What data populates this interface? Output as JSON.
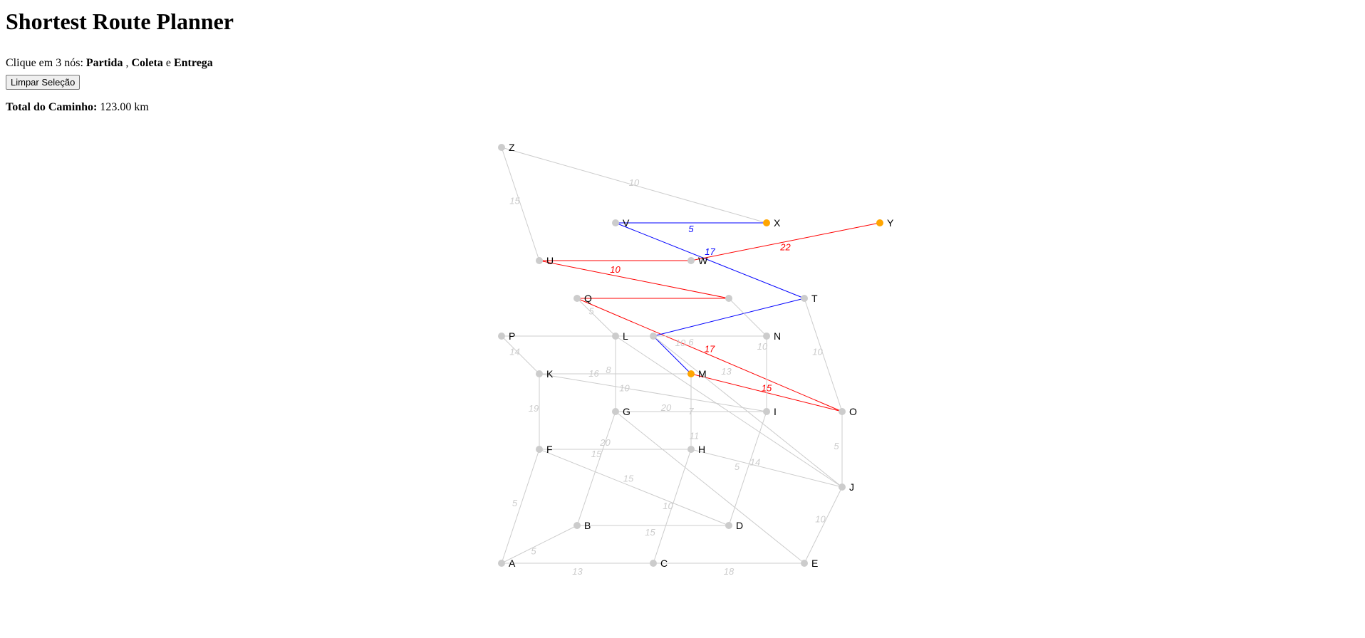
{
  "header": {
    "title": "Shortest Route Planner",
    "instruction_prefix": "Clique em 3 nós:",
    "step1": "Partida",
    "sep1": ",",
    "step2": "Coleta",
    "sep2": "e",
    "step3": "Entrega"
  },
  "controls": {
    "clear_label": "Limpar Seleção"
  },
  "summary": {
    "total_label": "Total do Caminho:",
    "total_value": "123.00 km"
  },
  "colors": {
    "node": "#cccccc",
    "selected": "#ffa500",
    "edge": "#cccccc",
    "leg1": "#0000ff",
    "leg2": "#ff0000",
    "label_default": "#cccccc"
  },
  "graph": {
    "nodes": [
      {
        "id": "Z",
        "label": "Z",
        "selected": false
      },
      {
        "id": "X",
        "label": "X",
        "selected": true
      },
      {
        "id": "Y",
        "label": "Y",
        "selected": true
      },
      {
        "id": "V",
        "label": "V",
        "selected": false
      },
      {
        "id": "U",
        "label": "U",
        "selected": false
      },
      {
        "id": "W",
        "label": "W",
        "selected": false
      },
      {
        "id": "T",
        "label": "T",
        "selected": false
      },
      {
        "id": "Q",
        "label": "Q",
        "selected": false
      },
      {
        "id": "R",
        "label": "",
        "selected": false
      },
      {
        "id": "P",
        "label": "P",
        "selected": false
      },
      {
        "id": "L",
        "label": "L",
        "selected": false
      },
      {
        "id": "S",
        "label": "",
        "selected": false
      },
      {
        "id": "N",
        "label": "N",
        "selected": false
      },
      {
        "id": "K",
        "label": "K",
        "selected": false
      },
      {
        "id": "M",
        "label": "M",
        "selected": true
      },
      {
        "id": "G",
        "label": "G",
        "selected": false
      },
      {
        "id": "I",
        "label": "I",
        "selected": false
      },
      {
        "id": "O",
        "label": "O",
        "selected": false
      },
      {
        "id": "F",
        "label": "F",
        "selected": false
      },
      {
        "id": "H",
        "label": "H",
        "selected": false
      },
      {
        "id": "J",
        "label": "J",
        "selected": false
      },
      {
        "id": "B",
        "label": "B",
        "selected": false
      },
      {
        "id": "D",
        "label": "D",
        "selected": false
      },
      {
        "id": "A",
        "label": "A",
        "selected": false
      },
      {
        "id": "C",
        "label": "C",
        "selected": false
      },
      {
        "id": "E",
        "label": "E",
        "selected": false
      }
    ],
    "edges": [
      {
        "from": "Z",
        "to": "X",
        "weight": "10",
        "path": ""
      },
      {
        "from": "Z",
        "to": "U",
        "weight": "15",
        "path": ""
      },
      {
        "from": "V",
        "to": "X",
        "weight": "5",
        "path": "leg1"
      },
      {
        "from": "V",
        "to": "T",
        "weight": "17",
        "path": "leg1"
      },
      {
        "from": "U",
        "to": "W",
        "weight": "10",
        "path": "leg2"
      },
      {
        "from": "W",
        "to": "Y",
        "weight": "22",
        "path": "leg2"
      },
      {
        "from": "U",
        "to": "R",
        "weight": "",
        "path": "leg2"
      },
      {
        "from": "Q",
        "to": "R",
        "weight": "",
        "path": "leg2"
      },
      {
        "from": "Q",
        "to": "O",
        "weight": "17",
        "path": "leg2"
      },
      {
        "from": "M",
        "to": "O",
        "weight": "15",
        "path": "leg2"
      },
      {
        "from": "T",
        "to": "S",
        "weight": "",
        "path": "leg1"
      },
      {
        "from": "S",
        "to": "M",
        "weight": "",
        "path": "leg1"
      },
      {
        "from": "R",
        "to": "N",
        "weight": "",
        "path": ""
      },
      {
        "from": "T",
        "to": "O",
        "weight": "10",
        "path": ""
      },
      {
        "from": "Q",
        "to": "L",
        "weight": "5",
        "path": ""
      },
      {
        "from": "P",
        "to": "L",
        "weight": "",
        "path": ""
      },
      {
        "from": "L",
        "to": "N",
        "weight": "6",
        "path": ""
      },
      {
        "from": "L",
        "to": "J",
        "weight": "10",
        "path": ""
      },
      {
        "from": "L",
        "to": "G",
        "weight": "8",
        "path": ""
      },
      {
        "from": "N",
        "to": "I",
        "weight": "10",
        "path": ""
      },
      {
        "from": "P",
        "to": "K",
        "weight": "14",
        "path": ""
      },
      {
        "from": "K",
        "to": "M",
        "weight": "16",
        "path": ""
      },
      {
        "from": "K",
        "to": "I",
        "weight": "10",
        "path": ""
      },
      {
        "from": "K",
        "to": "F",
        "weight": "19",
        "path": ""
      },
      {
        "from": "M",
        "to": "H",
        "weight": "7",
        "path": ""
      },
      {
        "from": "G",
        "to": "I",
        "weight": "20",
        "path": ""
      },
      {
        "from": "G",
        "to": "B",
        "weight": "15",
        "path": ""
      },
      {
        "from": "G",
        "to": "E",
        "weight": "11",
        "path": ""
      },
      {
        "from": "I",
        "to": "D",
        "weight": "5",
        "path": ""
      },
      {
        "from": "O",
        "to": "J",
        "weight": "5",
        "path": ""
      },
      {
        "from": "F",
        "to": "H",
        "weight": "20",
        "path": ""
      },
      {
        "from": "F",
        "to": "D",
        "weight": "15",
        "path": ""
      },
      {
        "from": "F",
        "to": "A",
        "weight": "5",
        "path": ""
      },
      {
        "from": "H",
        "to": "J",
        "weight": "14",
        "path": ""
      },
      {
        "from": "H",
        "to": "C",
        "weight": "10",
        "path": ""
      },
      {
        "from": "J",
        "to": "E",
        "weight": "10",
        "path": ""
      },
      {
        "from": "B",
        "to": "D",
        "weight": "15",
        "path": ""
      },
      {
        "from": "A",
        "to": "B",
        "weight": "5",
        "path": ""
      },
      {
        "from": "A",
        "to": "C",
        "weight": "13",
        "path": ""
      },
      {
        "from": "C",
        "to": "E",
        "weight": "18",
        "path": ""
      },
      {
        "from": "S",
        "to": "J",
        "weight": "13",
        "path": ""
      }
    ]
  }
}
